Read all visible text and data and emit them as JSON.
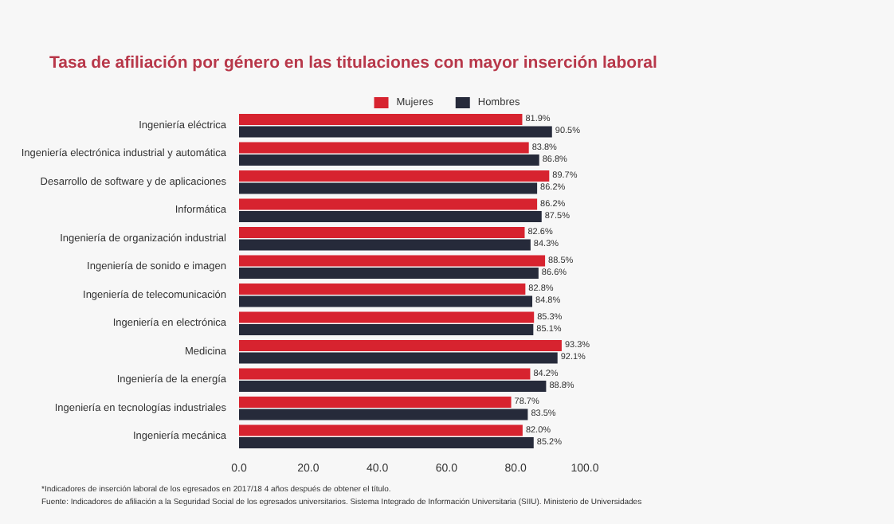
{
  "chart_data": {
    "type": "bar",
    "orientation": "horizontal",
    "title": "Tasa de afiliación por género en las titulaciones con mayor inserción laboral",
    "categories": [
      "Ingeniería eléctrica",
      "Ingeniería electrónica industrial y automática",
      "Desarrollo de software y de aplicaciones",
      "Informática",
      "Ingeniería de organización industrial",
      "Ingeniería de sonido e imagen",
      "Ingeniería de telecomunicación",
      "Ingeniería en electrónica",
      "Medicina",
      "Ingeniería de la energía",
      "Ingeniería en tecnologías industriales",
      "Ingeniería mecánica"
    ],
    "series": [
      {
        "name": "Mujeres",
        "color": "#d7232f",
        "values": [
          81.9,
          83.8,
          89.7,
          86.2,
          82.6,
          88.5,
          82.8,
          85.3,
          93.3,
          84.2,
          78.7,
          82.0
        ],
        "value_labels": [
          "81.9%",
          "83.8%",
          "89.7%",
          "86.2%",
          "82.6%",
          "88.5%",
          "82.8%",
          "85.3%",
          "93.3%",
          "84.2%",
          "78.7%",
          "82.0%"
        ]
      },
      {
        "name": "Hombres",
        "color": "#262a3a",
        "values": [
          90.5,
          86.8,
          86.2,
          87.5,
          84.3,
          86.6,
          84.8,
          85.1,
          92.1,
          88.8,
          83.5,
          85.2
        ],
        "value_labels": [
          "90.5%",
          "86.8%",
          "86.2%",
          "87.5%",
          "84.3%",
          "86.6%",
          "84.8%",
          "85.1%",
          "92.1%",
          "88.8%",
          "83.5%",
          "85.2%"
        ]
      }
    ],
    "xlim": [
      0,
      100
    ],
    "xticks": [
      {
        "value": 0,
        "label": "0.0"
      },
      {
        "value": 20,
        "label": "20.0"
      },
      {
        "value": 40,
        "label": "40.0"
      },
      {
        "value": 60,
        "label": "60.0"
      },
      {
        "value": 80,
        "label": "80.0"
      },
      {
        "value": 100,
        "label": "100.0"
      }
    ],
    "grid": false,
    "legend": "top",
    "annotations": [
      "*Indicadores de inserción laboral de los egresados en 2017/18 4 años después de obtener el título.",
      "Fuente: Indicadores de afiliación a la Seguridad Social de los egresados universitarios. Sistema Integrado de Información Universitaria (SIIU). Ministerio de Universidades"
    ]
  }
}
